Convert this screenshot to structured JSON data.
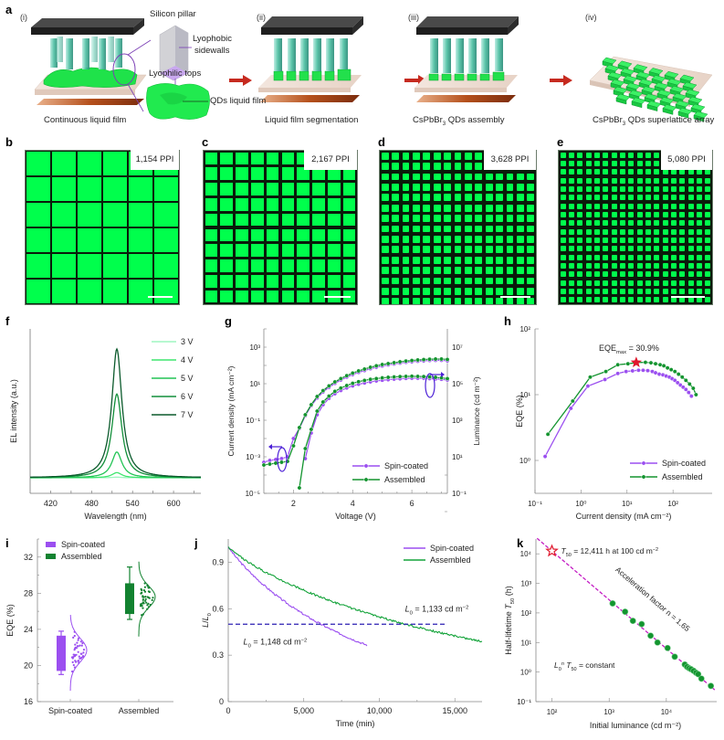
{
  "figure": {
    "panel_a": {
      "label": "a",
      "steps": [
        {
          "roman": "(i)",
          "caption": "Continuous liquid film"
        },
        {
          "roman": "(ii)",
          "caption": "Liquid film segmentation"
        },
        {
          "roman": "(iii)",
          "caption": "CsPbBr",
          "caption_sub": "3",
          "caption_rest": " QDs assembly"
        },
        {
          "roman": "(iv)",
          "caption": "CsPbBr",
          "caption_sub": "3",
          "caption_rest": " QDs superlattice array"
        }
      ],
      "callouts": {
        "silicon_pillar": "Silicon pillar",
        "lyophobic_1": "Lyophobic",
        "lyophobic_2": "sidewalls",
        "lyophilic": "Lyophilic tops",
        "qds_film": "QDs liquid film"
      },
      "colors": {
        "qd_green": "#1fe24a",
        "arrow": "#c62a1f",
        "pillar": "#5fc9b0",
        "top_plate": "#3a3a3a",
        "callout_line": "#7b3fb5"
      }
    },
    "panels_be": [
      {
        "label": "b",
        "ppi": "1,154 PPI",
        "cols": 6,
        "rows": 6
      },
      {
        "label": "c",
        "ppi": "2,167 PPI",
        "cols": 10,
        "rows": 10
      },
      {
        "label": "d",
        "ppi": "3,628 PPI",
        "cols": 15,
        "rows": 15
      },
      {
        "label": "e",
        "ppi": "5,080 PPI",
        "cols": 18,
        "rows": 18
      }
    ]
  },
  "chart_data": [
    {
      "panel": "f",
      "type": "line",
      "title": "",
      "xlabel": "Wavelength (nm)",
      "ylabel": "EL intensity (a.u.)",
      "xlim": [
        390,
        640
      ],
      "x_ticks": [
        420,
        480,
        540,
        600
      ],
      "peak_nm": 517,
      "fwhm_nm": 18,
      "series": [
        {
          "name": "3 V",
          "color": "#9ff5c0",
          "relative_peak": 0.005
        },
        {
          "name": "4 V",
          "color": "#3ee66e",
          "relative_peak": 0.04
        },
        {
          "name": "5 V",
          "color": "#22c455",
          "relative_peak": 0.2
        },
        {
          "name": "6 V",
          "color": "#128f3a",
          "relative_peak": 0.65
        },
        {
          "name": "7 V",
          "color": "#0b5a2c",
          "relative_peak": 1.0
        }
      ],
      "legend": "top-right"
    },
    {
      "panel": "g",
      "type": "line",
      "xlabel": "Voltage (V)",
      "ylabel_left": "Current density (mA cm⁻²)",
      "ylabel_right": "Luminance (cd m⁻²)",
      "xlim": [
        1.0,
        7.2
      ],
      "x_ticks": [
        "2",
        "4",
        "6"
      ],
      "x_tick_values": [
        2,
        4,
        6
      ],
      "ylim_left_log10": [
        -5,
        4
      ],
      "y_ticks_left": [
        "10⁻⁵",
        "10⁻³",
        "10⁻¹",
        "10¹",
        "10³"
      ],
      "y_ticks_left_values": [
        -5,
        -3,
        -1,
        1,
        3
      ],
      "ylim_right_log10": [
        -1,
        8
      ],
      "y_ticks_right": [
        "10⁻¹",
        "10¹",
        "10³",
        "10⁵",
        "10⁷"
      ],
      "y_ticks_right_values": [
        -1,
        1,
        3,
        5,
        7
      ],
      "series": [
        {
          "name": "Spin-coated",
          "color": "#9b4ff0",
          "axis": "current_density",
          "x": [
            1.0,
            1.2,
            1.4,
            1.6,
            1.8,
            2.0,
            2.2,
            2.4,
            2.6,
            2.8,
            3.0,
            3.2,
            3.4,
            3.6,
            3.8,
            4.0,
            4.2,
            4.4,
            4.6,
            4.8,
            5.0,
            5.2,
            5.4,
            5.6,
            5.8,
            6.0,
            6.2,
            6.4,
            6.6,
            6.8,
            7.0,
            7.2
          ],
          "y_log10": [
            -3.3,
            -3.2,
            -3.15,
            -3.1,
            -3.0,
            -2.0,
            -1.45,
            -0.75,
            -0.2,
            0.22,
            0.55,
            0.8,
            1.02,
            1.2,
            1.36,
            1.5,
            1.62,
            1.72,
            1.82,
            1.9,
            1.97,
            2.03,
            2.08,
            2.13,
            2.17,
            2.2,
            2.23,
            2.25,
            2.27,
            2.28,
            2.28,
            2.25
          ]
        },
        {
          "name": "Assembled",
          "color": "#13942f",
          "axis": "current_density",
          "x": [
            1.0,
            1.2,
            1.4,
            1.6,
            1.8,
            2.0,
            2.2,
            2.4,
            2.6,
            2.8,
            3.0,
            3.2,
            3.4,
            3.6,
            3.8,
            4.0,
            4.2,
            4.4,
            4.6,
            4.8,
            5.0,
            5.2,
            5.4,
            5.6,
            5.8,
            6.0,
            6.2,
            6.4,
            6.6,
            6.8,
            7.0,
            7.2
          ],
          "y_log10": [
            -3.45,
            -3.4,
            -3.35,
            -3.3,
            -3.25,
            -2.4,
            -1.4,
            -0.7,
            -0.15,
            0.3,
            0.62,
            0.88,
            1.1,
            1.28,
            1.44,
            1.58,
            1.7,
            1.8,
            1.9,
            1.98,
            2.05,
            2.1,
            2.15,
            2.2,
            2.24,
            2.27,
            2.3,
            2.32,
            2.34,
            2.35,
            2.35,
            2.33
          ]
        },
        {
          "name": "Spin-coated",
          "color": "#9b4ff0",
          "axis": "luminance",
          "x": [
            2.4,
            2.6,
            2.8,
            3.0,
            3.2,
            3.4,
            3.6,
            3.8,
            4.0,
            4.2,
            4.4,
            4.6,
            4.8,
            5.0,
            5.2,
            5.4,
            5.6,
            5.8,
            6.0,
            6.2,
            6.4,
            6.6,
            6.8,
            7.0,
            7.2
          ],
          "y_log10": [
            0.9,
            2.3,
            3.3,
            3.85,
            4.2,
            4.45,
            4.63,
            4.77,
            4.88,
            4.97,
            5.04,
            5.1,
            5.15,
            5.19,
            5.22,
            5.25,
            5.27,
            5.29,
            5.3,
            5.3,
            5.3,
            5.28,
            5.26,
            5.24,
            5.2
          ]
        },
        {
          "name": "Assembled",
          "color": "#13942f",
          "axis": "luminance",
          "x": [
            2.2,
            2.4,
            2.6,
            2.8,
            3.0,
            3.2,
            3.4,
            3.6,
            3.8,
            4.0,
            4.2,
            4.4,
            4.6,
            4.8,
            5.0,
            5.2,
            5.4,
            5.6,
            5.8,
            6.0,
            6.2,
            6.4,
            6.6,
            6.8,
            7.0,
            7.2
          ],
          "y_log10": [
            -0.7,
            1.45,
            2.5,
            3.5,
            4.0,
            4.32,
            4.58,
            4.76,
            4.9,
            5.02,
            5.11,
            5.18,
            5.24,
            5.28,
            5.32,
            5.35,
            5.37,
            5.39,
            5.4,
            5.41,
            5.4,
            5.39,
            5.37,
            5.35,
            5.32,
            5.28
          ]
        }
      ],
      "legend": "bottom-right"
    },
    {
      "panel": "h",
      "type": "line",
      "xlabel": "Current density (mA cm⁻²)",
      "ylabel": "EQE (%)",
      "xlim_log10": [
        -1,
        2.85
      ],
      "x_ticks": [
        "10⁻¹",
        "10⁰",
        "10¹",
        "10²"
      ],
      "x_tick_values": [
        -1,
        0,
        1,
        2
      ],
      "ylim_log10": [
        -0.5,
        2
      ],
      "y_ticks": [
        "10⁰",
        "10¹",
        "10²"
      ],
      "y_tick_values": [
        0,
        1,
        2
      ],
      "annotation": {
        "text": "EQE",
        "sub": "max",
        "rest": " = 30.9%",
        "x_log10": 1.2,
        "y": 30.9,
        "marker_color": "#e0182d"
      },
      "series": [
        {
          "name": "Spin-coated",
          "color": "#9b4ff0",
          "x_log10": [
            -0.78,
            -0.22,
            0.15,
            0.52,
            0.8,
            0.98,
            1.12,
            1.25,
            1.35,
            1.45,
            1.55,
            1.62,
            1.7,
            1.78,
            1.85,
            1.92,
            1.98,
            2.04,
            2.1,
            2.16,
            2.22,
            2.28,
            2.34,
            2.4
          ],
          "y": [
            1.15,
            6.2,
            13.5,
            17,
            21,
            22.5,
            23,
            23.5,
            23.5,
            23.2,
            22.5,
            21.5,
            20.5,
            20,
            19.2,
            18.5,
            17.5,
            16.5,
            15.2,
            14,
            13,
            12,
            10.8,
            9.5
          ]
        },
        {
          "name": "Assembled",
          "color": "#13942f",
          "x_log10": [
            -0.72,
            -0.18,
            0.2,
            0.54,
            0.8,
            1.02,
            1.22,
            1.4,
            1.52,
            1.62,
            1.72,
            1.8,
            1.88,
            1.96,
            2.04,
            2.12,
            2.2,
            2.28,
            2.36,
            2.44,
            2.5
          ],
          "y": [
            2.5,
            8,
            18.5,
            22.5,
            28.5,
            29.5,
            30.9,
            31,
            30.5,
            29.5,
            28.5,
            27.5,
            25.5,
            24,
            22.5,
            20.5,
            18.5,
            16.5,
            14.5,
            12.5,
            10
          ]
        }
      ],
      "legend": "bottom-right"
    },
    {
      "panel": "i",
      "type": "box",
      "ylabel": "EQE (%)",
      "categories": [
        "Spin-coated",
        "Assembled"
      ],
      "ylim": [
        16,
        34
      ],
      "y_ticks": [
        16,
        20,
        24,
        28,
        32
      ],
      "series": [
        {
          "name": "Spin-coated",
          "color": "#9b4ff0",
          "whisker_low": 19.0,
          "q1": 19.4,
          "q3": 23.3,
          "whisker_high": 23.8,
          "dist_mean": 21.7,
          "dist_sd": 1.3,
          "dist_range": [
            17.2,
            25.7
          ]
        },
        {
          "name": "Assembled",
          "color": "#128230",
          "whisker_low": 25.1,
          "q1": 25.7,
          "q3": 29.1,
          "whisker_high": 30.9,
          "dist_mean": 27.6,
          "dist_sd": 1.2,
          "dist_range": [
            23.2,
            31.6
          ]
        }
      ],
      "legend": "top-left"
    },
    {
      "panel": "j",
      "type": "line",
      "xlabel": "Time (min)",
      "ylabel": "L/L₀",
      "xlim": [
        0,
        16800
      ],
      "ylim": [
        0,
        1.05
      ],
      "x_ticks": [
        "0",
        "5,000",
        "10,000",
        "15,000"
      ],
      "x_tick_values": [
        0,
        5000,
        10000,
        15000
      ],
      "y_ticks": [
        "0",
        "0.3",
        "0.6",
        "0.9"
      ],
      "y_tick_values": [
        0,
        0.3,
        0.6,
        0.9
      ],
      "reference_line": {
        "y": 0.5,
        "color": "#2b1fb3",
        "style": "dashed",
        "x_end": 14500
      },
      "annotations": [
        {
          "text_l": "L",
          "sub": "0",
          "rest": " = 1,133 cd m",
          "sup": "−2",
          "x": 11700,
          "y": 0.58
        },
        {
          "text_l": "L",
          "sub": "0",
          "rest": " = 1,148 cd m",
          "sup": "−2",
          "x": 1000,
          "y": 0.37
        }
      ],
      "series": [
        {
          "name": "Spin-coated",
          "color": "#9b4ff0",
          "x_end": 9200,
          "t50_min": 6300,
          "start": 1.0,
          "end": 0.37
        },
        {
          "name": "Assembled",
          "color": "#14a33a",
          "x_end": 16800,
          "t50_min": 12400,
          "start": 1.0,
          "end": 0.4
        }
      ],
      "legend": "top-right"
    },
    {
      "panel": "k",
      "type": "scatter",
      "xlabel": "Initial luminance (cd m⁻²)",
      "ylabel": "Half-lifetime T₅₀ (h)",
      "xlim_log10": [
        1.72,
        4.88
      ],
      "ylim_log10": [
        -1,
        4.5
      ],
      "x_ticks": [
        "10²",
        "10³",
        "10⁴"
      ],
      "x_tick_values": [
        2,
        3,
        4
      ],
      "y_ticks": [
        "10⁻¹",
        "10⁰",
        "10¹",
        "10²",
        "10³",
        "10⁴"
      ],
      "y_tick_values": [
        -1,
        0,
        1,
        2,
        3,
        4
      ],
      "fit": {
        "acceleration_factor": 1.65,
        "color": "#c41cc4",
        "style": "dashed",
        "label": "Acceleration factor n = 1.65"
      },
      "star": {
        "x": 100,
        "y": 12411,
        "label_pre": "T",
        "label_sub": "50",
        "label_rest": " = 12,411 h at 100 cd m",
        "label_sup": "−2",
        "color": "#e0182d"
      },
      "equation": {
        "l": "L",
        "sub0": "0",
        "supn": "n",
        "t": " T",
        "sub50": "50",
        "rest": " = constant"
      },
      "points_color": "#13942f",
      "points": [
        [
          1150,
          210
        ],
        [
          1900,
          110
        ],
        [
          2600,
          54
        ],
        [
          3700,
          42
        ],
        [
          5300,
          17
        ],
        [
          7000,
          10
        ],
        [
          10500,
          6.5
        ],
        [
          14000,
          3.3
        ],
        [
          21000,
          1.8
        ],
        [
          23000,
          1.5
        ],
        [
          25000,
          1.35
        ],
        [
          27000,
          1.25
        ],
        [
          30000,
          1.1
        ],
        [
          33000,
          0.95
        ],
        [
          36000,
          0.85
        ],
        [
          41000,
          0.6
        ],
        [
          60000,
          0.34
        ]
      ]
    }
  ]
}
